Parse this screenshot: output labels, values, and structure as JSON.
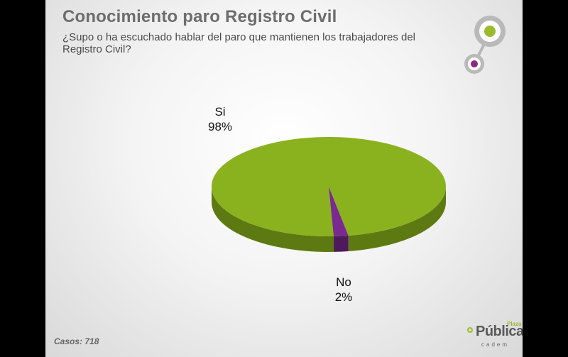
{
  "header": {
    "title": "Conocimiento paro Registro Civil",
    "subtitle": "¿Supo o ha escuchado hablar del paro que mantienen los trabajadores del Registro Civil?"
  },
  "chart_data": {
    "type": "pie",
    "labels": [
      "Si",
      "No"
    ],
    "values": [
      98,
      2
    ],
    "value_labels": [
      "98%",
      "2%"
    ],
    "colors": [
      "#8ab21e",
      "#7a2a8e"
    ],
    "side_colors": [
      "#5d7a12",
      "#4e1a5c"
    ]
  },
  "footer": {
    "cases": "Casos: 718"
  },
  "logo": {
    "brand": "Pública",
    "tag": "Plaza",
    "sub": "cadem"
  },
  "colors": {
    "accent_green": "#9bbb2e",
    "accent_purple": "#8a2a7e",
    "title": "#6d6d6d"
  }
}
